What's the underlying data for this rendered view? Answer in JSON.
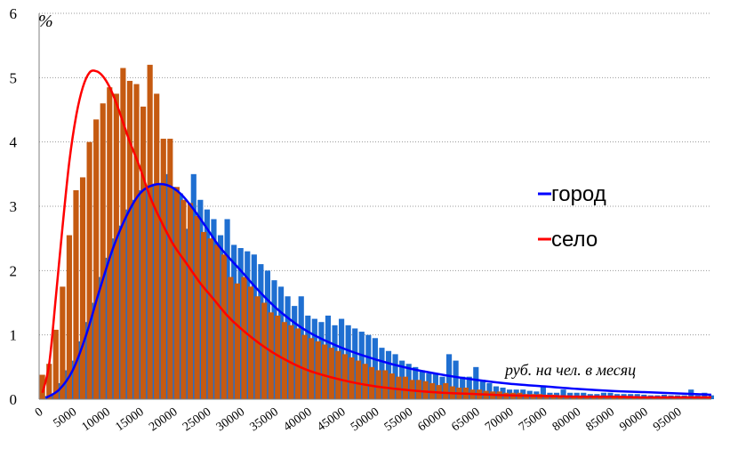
{
  "chart_data": {
    "type": "bar",
    "ylabel": "%",
    "xlabel": "руб. на чел. в месяц",
    "ylim": [
      0,
      6
    ],
    "xlim": [
      0,
      100000
    ],
    "bin_width": 1000,
    "y_ticks": [
      "0",
      "1",
      "2",
      "3",
      "4",
      "5",
      "6"
    ],
    "x_ticks": [
      "0",
      "5000",
      "10000",
      "15000",
      "20000",
      "25000",
      "30000",
      "35000",
      "40000",
      "45000",
      "50000",
      "55000",
      "60000",
      "65000",
      "70000",
      "75000",
      "80000",
      "85000",
      "90000",
      "95000"
    ],
    "grid": "horizontal dotted",
    "legend_position": "right",
    "legend": [
      {
        "label": "город",
        "color": "#0000ff"
      },
      {
        "label": "село",
        "color": "#ff0000"
      }
    ],
    "series": [
      {
        "kind": "bar",
        "color": "#1f6fd1",
        "x_start": 500,
        "values": [
          0.05,
          0.08,
          0.25,
          0.45,
          0.6,
          0.9,
          1.2,
          1.5,
          1.9,
          2.2,
          2.5,
          2.7,
          2.95,
          3.1,
          3.25,
          3.3,
          3.35,
          3.35,
          3.5,
          3.3,
          3.2,
          2.65,
          3.5,
          3.1,
          2.95,
          2.8,
          2.55,
          2.8,
          2.4,
          2.35,
          2.3,
          2.25,
          2.1,
          2.0,
          1.85,
          1.75,
          1.6,
          1.45,
          1.6,
          1.3,
          1.25,
          1.2,
          1.3,
          1.15,
          1.25,
          1.15,
          1.1,
          1.05,
          1.0,
          0.95,
          0.8,
          0.75,
          0.7,
          0.6,
          0.55,
          0.5,
          0.45,
          0.4,
          0.4,
          0.35,
          0.7,
          0.6,
          0.35,
          0.35,
          0.5,
          0.3,
          0.25,
          0.2,
          0.18,
          0.15,
          0.15,
          0.15,
          0.13,
          0.12,
          0.2,
          0.1,
          0.1,
          0.15,
          0.1,
          0.1,
          0.1,
          0.08,
          0.08,
          0.1,
          0.1,
          0.08,
          0.08,
          0.08,
          0.08,
          0.07,
          0.06,
          0.06,
          0.07,
          0.06,
          0.06,
          0.06,
          0.15,
          0.06,
          0.1,
          0.06
        ]
      },
      {
        "kind": "bar",
        "color": "#c55a11",
        "x_start": 0,
        "values": [
          0.38,
          0.55,
          1.08,
          1.75,
          2.55,
          3.25,
          3.45,
          4.0,
          4.35,
          4.6,
          4.85,
          4.75,
          5.15,
          4.95,
          4.9,
          4.55,
          5.2,
          4.75,
          4.05,
          4.05,
          3.3,
          3.1,
          3.05,
          2.85,
          2.6,
          2.5,
          2.4,
          2.25,
          1.9,
          1.8,
          1.9,
          1.75,
          1.6,
          1.5,
          1.35,
          1.3,
          1.2,
          1.15,
          1.1,
          1.0,
          0.95,
          0.9,
          0.85,
          0.8,
          0.75,
          0.7,
          0.65,
          0.6,
          0.55,
          0.5,
          0.45,
          0.45,
          0.4,
          0.35,
          0.35,
          0.3,
          0.3,
          0.28,
          0.25,
          0.22,
          0.25,
          0.2,
          0.18,
          0.18,
          0.15,
          0.15,
          0.13,
          0.12,
          0.12,
          0.1,
          0.1,
          0.1,
          0.08,
          0.08,
          0.08,
          0.07,
          0.07,
          0.06,
          0.06,
          0.05,
          0.05,
          0.05,
          0.05,
          0.04,
          0.04,
          0.04,
          0.03,
          0.03,
          0.03,
          0.03,
          0.03,
          0.02,
          0.02,
          0.02,
          0.02,
          0.02,
          0.02,
          0.02,
          0.02,
          0.02
        ]
      },
      {
        "name": "город",
        "kind": "line",
        "color": "#0000ff",
        "x": [
          1000,
          3000,
          5000,
          7000,
          9000,
          11000,
          13000,
          15000,
          17000,
          19000,
          21000,
          23000,
          25000,
          27000,
          30000,
          33000,
          36000,
          40000,
          45000,
          50000,
          55000,
          60000,
          65000,
          70000,
          75000,
          80000,
          85000,
          90000,
          95000,
          100000
        ],
        "y": [
          0.02,
          0.15,
          0.45,
          1.0,
          1.7,
          2.35,
          2.85,
          3.2,
          3.33,
          3.33,
          3.2,
          2.95,
          2.65,
          2.35,
          2.0,
          1.65,
          1.35,
          1.05,
          0.8,
          0.62,
          0.48,
          0.38,
          0.3,
          0.24,
          0.2,
          0.16,
          0.13,
          0.11,
          0.09,
          0.07
        ]
      },
      {
        "name": "село",
        "kind": "line",
        "color": "#ff0000",
        "x": [
          500,
          1500,
          2500,
          3500,
          4500,
          5500,
          6500,
          7500,
          8500,
          9500,
          10500,
          11500,
          12500,
          13500,
          15000,
          16500,
          18000,
          20000,
          22000,
          24000,
          26000,
          28000,
          30000,
          33000,
          36000,
          40000,
          45000,
          50000,
          55000,
          60000,
          65000,
          70000,
          75000,
          80000,
          85000,
          90000,
          95000,
          100000
        ],
        "y": [
          0.1,
          0.55,
          1.6,
          2.7,
          3.7,
          4.4,
          4.85,
          5.08,
          5.1,
          5.02,
          4.85,
          4.6,
          4.3,
          4.0,
          3.6,
          3.15,
          2.8,
          2.4,
          2.1,
          1.8,
          1.55,
          1.3,
          1.1,
          0.85,
          0.65,
          0.45,
          0.3,
          0.2,
          0.14,
          0.1,
          0.08,
          0.06,
          0.05,
          0.04,
          0.04,
          0.03,
          0.03,
          0.03
        ]
      }
    ]
  }
}
